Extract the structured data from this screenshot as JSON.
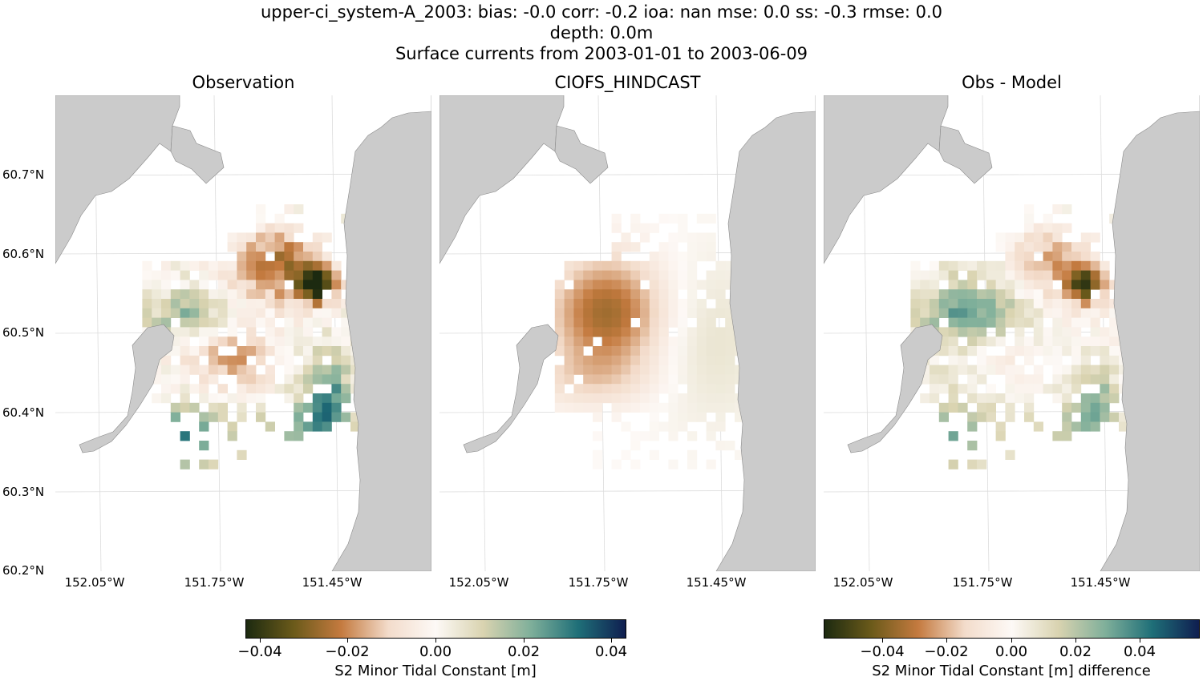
{
  "figure": {
    "title_line1": "upper-ci_system-A_2003: bias: -0.0  corr: -0.2  ioa: nan  mse: 0.0  ss: -0.3  rmse: 0.0",
    "title_line2": "depth: 0.0m",
    "title_line3": "Surface currents from 2003-01-01 to 2003-06-09"
  },
  "chart_data": [
    {
      "type": "heatmap",
      "title": "Observation",
      "ylabels": [
        "60.7°N",
        "60.6°N",
        "60.5°N",
        "60.4°N",
        "60.3°N",
        "60.2°N"
      ],
      "xlabels": [
        "152.05°W",
        "151.75°W",
        "151.45°W"
      ],
      "ylim": [
        60.2,
        60.8
      ],
      "colorbar": {
        "label": "S2 Minor Tidal Constant [m]",
        "ticks": [
          "−0.04",
          "−0.02",
          "0.00",
          "0.02",
          "0.04"
        ],
        "vmin": -0.043,
        "vmax": 0.043
      },
      "field": "obs",
      "cmap": "topo-diverging"
    },
    {
      "type": "heatmap",
      "title": "CIOFS_HINDCAST",
      "xlabels": [
        "152.05°W",
        "151.75°W",
        "151.45°W"
      ],
      "ylim": [
        60.2,
        60.8
      ],
      "colorbar": {
        "label": "S2 Minor Tidal Constant [m]",
        "ticks": [
          "−0.04",
          "−0.02",
          "0.00",
          "0.02",
          "0.04"
        ],
        "vmin": -0.043,
        "vmax": 0.043
      },
      "field": "model",
      "cmap": "topo-diverging"
    },
    {
      "type": "heatmap",
      "title": "Obs - Model",
      "xlabels": [
        "152.05°W",
        "151.75°W",
        "151.45°W"
      ],
      "ylim": [
        60.2,
        60.8
      ],
      "colorbar": {
        "label": "S2 Minor Tidal Constant [m] difference",
        "ticks": [
          "−0.04",
          "−0.02",
          "0.00",
          "0.02",
          "0.04"
        ],
        "vmin": -0.058,
        "vmax": 0.058
      },
      "field": "diff",
      "cmap": "topo-diverging"
    }
  ],
  "colors": {
    "land": "#cbcbcb",
    "cmap_stops": [
      "#1c2a10",
      "#6b5a1a",
      "#c47a3f",
      "#f3dccb",
      "#fdf9f6",
      "#d9d3b0",
      "#7faf9a",
      "#1f6f78",
      "#0f1e50"
    ]
  }
}
